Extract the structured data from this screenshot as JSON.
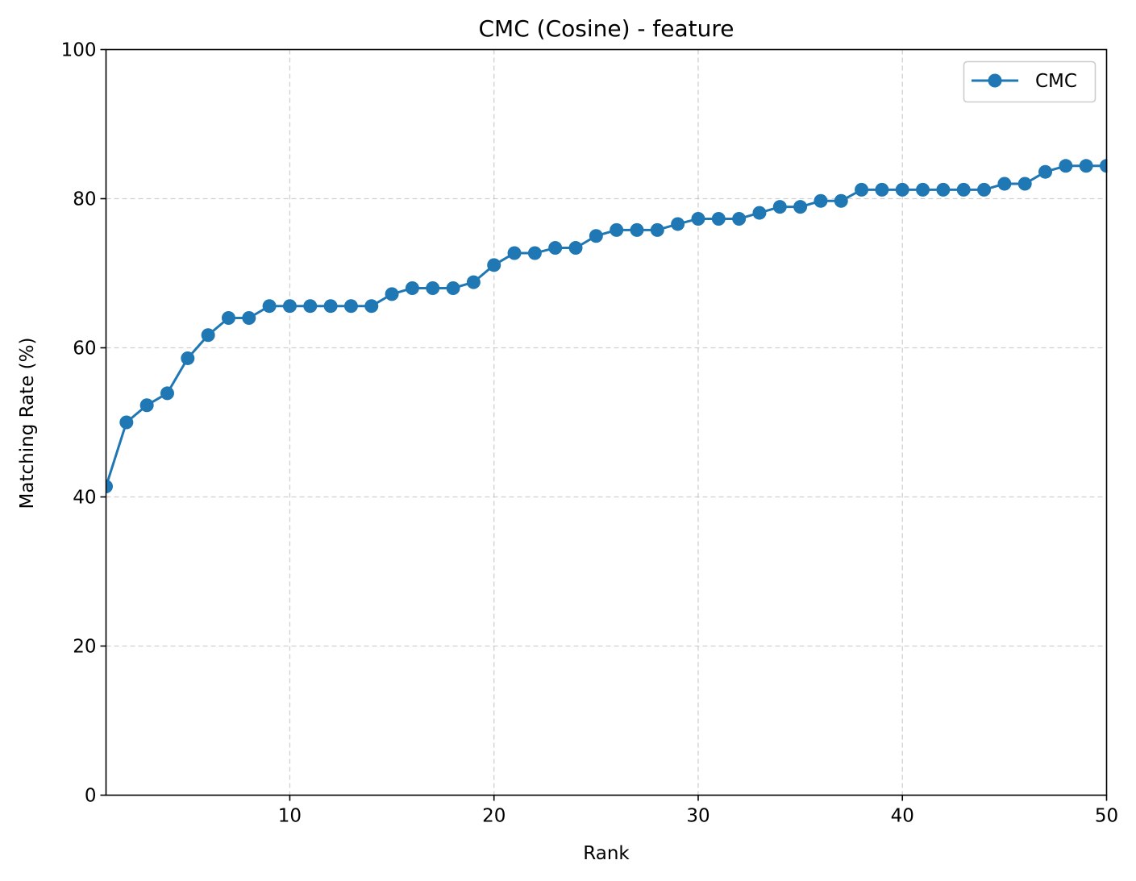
{
  "chart_data": {
    "type": "line",
    "title": "CMC (Cosine) - feature",
    "xlabel": "Rank",
    "ylabel": "Matching Rate (%)",
    "xlim": [
      1,
      50
    ],
    "ylim": [
      0,
      100
    ],
    "x_ticks": [
      10,
      20,
      30,
      40,
      50
    ],
    "y_ticks": [
      0,
      20,
      40,
      60,
      80,
      100
    ],
    "x_tick_labels": [
      "10",
      "20",
      "30",
      "40",
      "50"
    ],
    "y_tick_labels": [
      "0",
      "20",
      "40",
      "60",
      "80",
      "100"
    ],
    "grid": true,
    "grid_style": "dashed",
    "legend_position": "top-right",
    "series": [
      {
        "name": "CMC",
        "color": "#1f77b4",
        "marker": "circle",
        "x": [
          1,
          2,
          3,
          4,
          5,
          6,
          7,
          8,
          9,
          10,
          11,
          12,
          13,
          14,
          15,
          16,
          17,
          18,
          19,
          20,
          21,
          22,
          23,
          24,
          25,
          26,
          27,
          28,
          29,
          30,
          31,
          32,
          33,
          34,
          35,
          36,
          37,
          38,
          39,
          40,
          41,
          42,
          43,
          44,
          45,
          46,
          47,
          48,
          49,
          50
        ],
        "values": [
          41.4,
          50.0,
          52.3,
          53.9,
          58.6,
          61.7,
          64.0,
          64.0,
          65.6,
          65.6,
          65.6,
          65.6,
          65.6,
          65.6,
          67.2,
          68.0,
          68.0,
          68.0,
          68.8,
          71.1,
          72.7,
          72.7,
          73.4,
          73.4,
          75.0,
          75.8,
          75.8,
          75.8,
          76.6,
          77.3,
          77.3,
          77.3,
          78.1,
          78.9,
          78.9,
          79.7,
          79.7,
          81.2,
          81.2,
          81.2,
          81.2,
          81.2,
          81.2,
          81.2,
          82.0,
          82.0,
          83.6,
          84.4,
          84.4,
          84.4
        ]
      }
    ]
  }
}
